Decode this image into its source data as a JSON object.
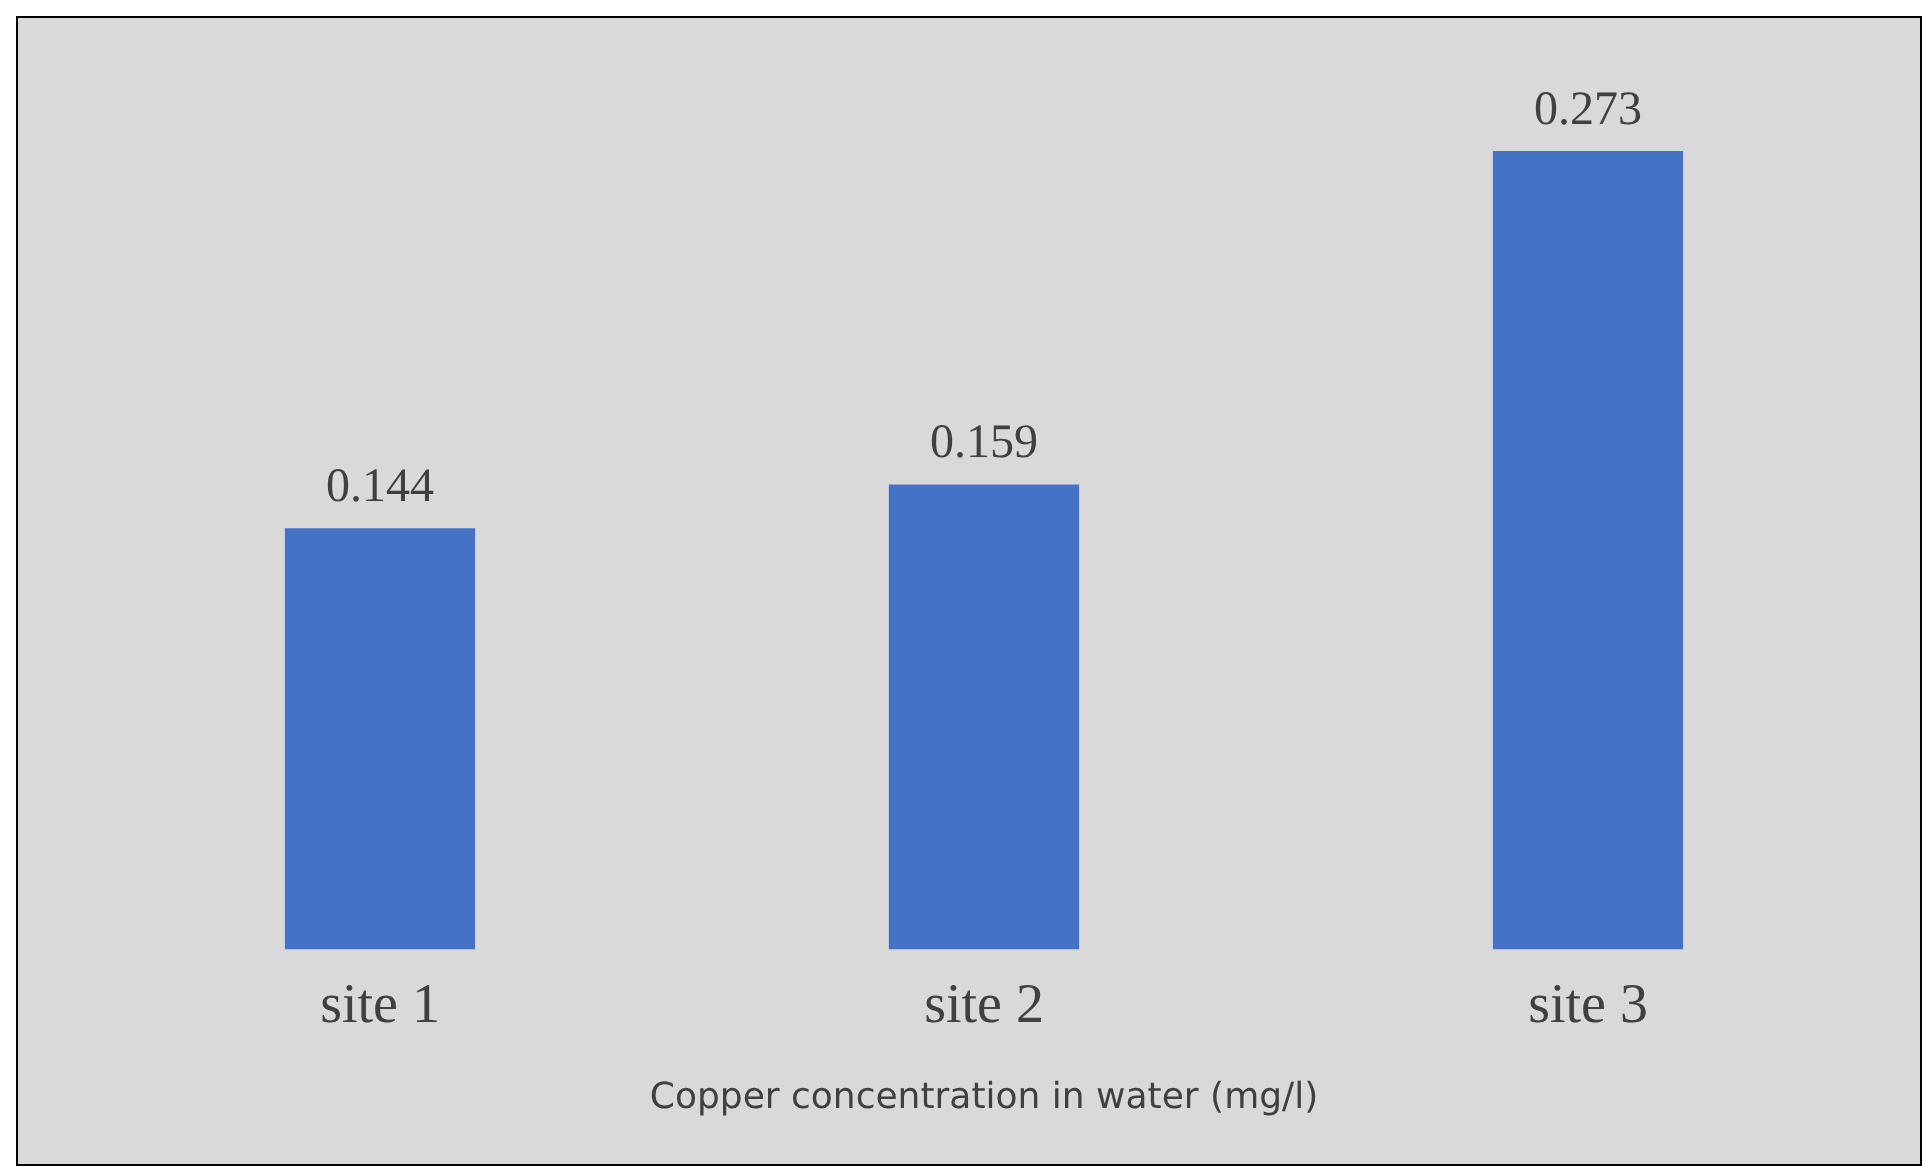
{
  "chart_data": {
    "type": "bar",
    "xlabel": "Copper concentration in water (mg/l)",
    "categories": [
      "site 1",
      "site 2",
      "site 3"
    ],
    "values": [
      0.144,
      0.159,
      0.273
    ],
    "color": "#4472c4",
    "tick_labels": "x",
    "data_labels": true,
    "grid": false,
    "legend": false
  }
}
